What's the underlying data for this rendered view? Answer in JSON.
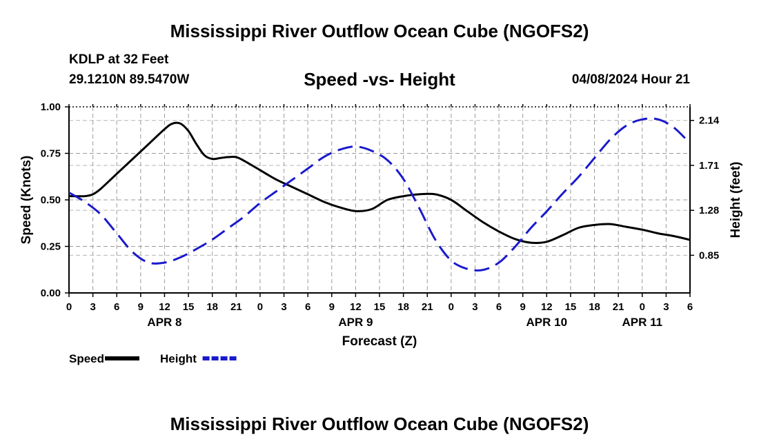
{
  "header": {
    "title": "Mississippi River Outflow Ocean Cube (NGOFS2)",
    "station": "KDLP at 32 Feet",
    "coords": "29.1210N  89.5470W",
    "subtitle": "Speed -vs- Height",
    "datetime": "04/08/2024 Hour 21"
  },
  "footer": {
    "title": "Mississippi River Outflow Ocean Cube (NGOFS2)"
  },
  "chart_data": {
    "type": "line",
    "xlabel": "Forecast (Z)",
    "ylabel_left": "Speed (Knots)",
    "ylabel_right": "Height (feet)",
    "xlim": [
      0,
      78
    ],
    "ylim_left": [
      0,
      1
    ],
    "ylim_right": [
      0.49,
      2.27
    ],
    "grid": true,
    "x_ticks": [
      0,
      3,
      6,
      9,
      12,
      15,
      18,
      21,
      24,
      27,
      30,
      33,
      36,
      39,
      42,
      45,
      48,
      51,
      54,
      57,
      60,
      63,
      66,
      69,
      72,
      75,
      78
    ],
    "x_tick_labels": [
      "0",
      "3",
      "6",
      "9",
      "12",
      "15",
      "18",
      "21",
      "0",
      "3",
      "6",
      "9",
      "12",
      "15",
      "18",
      "21",
      "0",
      "3",
      "6",
      "9",
      "12",
      "15",
      "18",
      "21",
      "0",
      "3",
      "6"
    ],
    "day_labels": [
      {
        "label": "APR 8",
        "x": 12
      },
      {
        "label": "APR 9",
        "x": 36
      },
      {
        "label": "APR 10",
        "x": 60
      },
      {
        "label": "APR 11",
        "x": 72
      }
    ],
    "y_left_ticks": [
      0,
      0.25,
      0.5,
      0.75,
      1.0
    ],
    "y_left_tick_labels": [
      "0.00",
      "0.25",
      "0.50",
      "0.75",
      "1.00"
    ],
    "y_right_ticks": [
      0.85,
      1.28,
      1.71,
      2.14
    ],
    "y_right_tick_labels": [
      "0.85",
      "1.28",
      "1.71",
      "2.14"
    ],
    "series": [
      {
        "name": "Speed",
        "axis": "left",
        "color": "#000000",
        "style": "solid",
        "x": [
          0,
          1,
          2,
          3,
          4,
          6,
          8,
          10,
          12,
          13,
          14,
          15,
          16,
          17,
          18,
          19,
          20,
          21,
          22,
          24,
          26,
          28,
          30,
          32,
          34,
          36,
          38,
          40,
          42,
          44,
          46,
          48,
          50,
          52,
          54,
          56,
          58,
          60,
          62,
          64,
          66,
          68,
          70,
          72,
          74,
          76,
          78
        ],
        "values": [
          0.52,
          0.52,
          0.52,
          0.53,
          0.56,
          0.64,
          0.72,
          0.8,
          0.88,
          0.91,
          0.91,
          0.87,
          0.8,
          0.74,
          0.72,
          0.725,
          0.73,
          0.73,
          0.71,
          0.66,
          0.61,
          0.57,
          0.53,
          0.49,
          0.46,
          0.44,
          0.45,
          0.5,
          0.52,
          0.53,
          0.53,
          0.5,
          0.44,
          0.38,
          0.33,
          0.29,
          0.27,
          0.275,
          0.31,
          0.35,
          0.365,
          0.37,
          0.355,
          0.34,
          0.32,
          0.305,
          0.285
        ]
      },
      {
        "name": "Height",
        "axis": "right",
        "color": "#1a1acc",
        "style": "dashed",
        "x": [
          0,
          2,
          4,
          6,
          8,
          10,
          12,
          14,
          16,
          18,
          20,
          22,
          24,
          26,
          28,
          30,
          32,
          34,
          36,
          38,
          40,
          42,
          44,
          46,
          48,
          50,
          52,
          54,
          56,
          58,
          60,
          62,
          64,
          66,
          68,
          70,
          72,
          74,
          76,
          78
        ],
        "values": [
          1.45,
          1.36,
          1.24,
          1.06,
          0.88,
          0.78,
          0.78,
          0.83,
          0.91,
          1.0,
          1.11,
          1.22,
          1.35,
          1.46,
          1.57,
          1.68,
          1.79,
          1.86,
          1.89,
          1.85,
          1.76,
          1.58,
          1.3,
          1.0,
          0.8,
          0.72,
          0.71,
          0.78,
          0.93,
          1.11,
          1.27,
          1.44,
          1.6,
          1.78,
          1.96,
          2.09,
          2.15,
          2.15,
          2.07,
          1.92
        ]
      }
    ],
    "legend": [
      {
        "label": "Speed",
        "color": "#000000",
        "style": "solid"
      },
      {
        "label": "Height",
        "color": "#1a1acc",
        "style": "dashed"
      }
    ]
  }
}
